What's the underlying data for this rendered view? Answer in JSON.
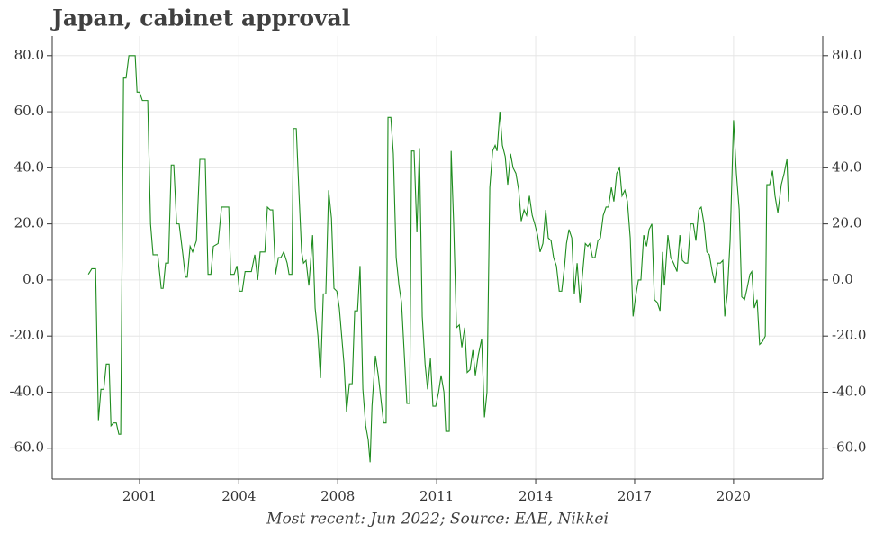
{
  "chart_data": {
    "type": "line",
    "title": "Japan, cabinet approval",
    "caption": "Most recent: Jun 2022; Source: EAE, Nikkei",
    "grid": true,
    "xlim": [
      1999.0,
      2023.53
    ],
    "xticks": [
      {
        "value": 2001.78,
        "label": "2001"
      },
      {
        "value": 2004.94,
        "label": "2004"
      },
      {
        "value": 2008.09,
        "label": "2008"
      },
      {
        "value": 2011.24,
        "label": "2011"
      },
      {
        "value": 2014.39,
        "label": "2014"
      },
      {
        "value": 2017.54,
        "label": "2017"
      },
      {
        "value": 2020.69,
        "label": "2020"
      }
    ],
    "ylim": [
      -71,
      87
    ],
    "yticks": [
      {
        "value": -60,
        "label": "-60.0"
      },
      {
        "value": -40,
        "label": "-40.0"
      },
      {
        "value": -20,
        "label": "-20.0"
      },
      {
        "value": 0,
        "label": "0.0"
      },
      {
        "value": 20,
        "label": "20.0"
      },
      {
        "value": 40,
        "label": "40.0"
      },
      {
        "value": 60,
        "label": "60.0"
      },
      {
        "value": 80,
        "label": "80.0"
      }
    ],
    "y2lim": [
      -71,
      87
    ],
    "y2ticks": [
      {
        "value": -60,
        "label": "-60.0"
      },
      {
        "value": -40,
        "label": "-40.0"
      },
      {
        "value": -20,
        "label": "-20.0"
      },
      {
        "value": 0,
        "label": "0.0"
      },
      {
        "value": 20,
        "label": "20.0"
      },
      {
        "value": 40,
        "label": "40.0"
      },
      {
        "value": 60,
        "label": "60.0"
      },
      {
        "value": 80,
        "label": "80.0"
      }
    ],
    "x": [
      2000.15,
      2000.26,
      2000.38,
      2000.47,
      2000.55,
      2000.64,
      2000.72,
      2000.81,
      2000.87,
      2000.95,
      2001.04,
      2001.12,
      2001.18,
      2001.27,
      2001.35,
      2001.44,
      2001.64,
      2001.7,
      2001.78,
      2001.87,
      2002.04,
      2002.13,
      2002.21,
      2002.36,
      2002.47,
      2002.53,
      2002.61,
      2002.7,
      2002.79,
      2002.87,
      2002.96,
      2003.04,
      2003.16,
      2003.24,
      2003.3,
      2003.39,
      2003.47,
      2003.59,
      2003.7,
      2003.87,
      2003.96,
      2004.05,
      2004.13,
      2004.28,
      2004.39,
      2004.62,
      2004.68,
      2004.79,
      2004.88,
      2004.96,
      2005.05,
      2005.14,
      2005.34,
      2005.45,
      2005.54,
      2005.62,
      2005.77,
      2005.85,
      2005.94,
      2006.02,
      2006.11,
      2006.2,
      2006.28,
      2006.37,
      2006.48,
      2006.54,
      2006.63,
      2006.68,
      2006.77,
      2006.86,
      2006.94,
      2007.0,
      2007.08,
      2007.17,
      2007.29,
      2007.37,
      2007.46,
      2007.54,
      2007.63,
      2007.71,
      2007.8,
      2007.89,
      2007.97,
      2008.06,
      2008.14,
      2008.23,
      2008.29,
      2008.37,
      2008.46,
      2008.55,
      2008.63,
      2008.72,
      2008.8,
      2008.89,
      2008.98,
      2009.06,
      2009.12,
      2009.18,
      2009.29,
      2009.38,
      2009.46,
      2009.55,
      2009.63,
      2009.69,
      2009.78,
      2009.86,
      2009.95,
      2010.04,
      2010.12,
      2010.21,
      2010.29,
      2010.38,
      2010.44,
      2010.52,
      2010.61,
      2010.69,
      2010.78,
      2010.87,
      2010.95,
      2011.04,
      2011.12,
      2011.21,
      2011.3,
      2011.38,
      2011.47,
      2011.53,
      2011.64,
      2011.7,
      2011.78,
      2011.87,
      2011.96,
      2012.04,
      2012.13,
      2012.21,
      2012.3,
      2012.39,
      2012.47,
      2012.56,
      2012.67,
      2012.76,
      2012.84,
      2012.93,
      2013.02,
      2013.1,
      2013.16,
      2013.25,
      2013.33,
      2013.42,
      2013.5,
      2013.59,
      2013.67,
      2013.76,
      2013.85,
      2013.93,
      2014.02,
      2014.1,
      2014.19,
      2014.28,
      2014.36,
      2014.45,
      2014.53,
      2014.62,
      2014.71,
      2014.79,
      2014.88,
      2014.96,
      2015.05,
      2015.14,
      2015.22,
      2015.31,
      2015.37,
      2015.45,
      2015.54,
      2015.62,
      2015.71,
      2015.8,
      2015.88,
      2015.97,
      2016.05,
      2016.11,
      2016.2,
      2016.28,
      2016.37,
      2016.45,
      2016.54,
      2016.63,
      2016.71,
      2016.8,
      2016.88,
      2016.97,
      2017.06,
      2017.14,
      2017.23,
      2017.31,
      2017.4,
      2017.49,
      2017.57,
      2017.66,
      2017.74,
      2017.83,
      2017.92,
      2018.0,
      2018.09,
      2018.17,
      2018.26,
      2018.35,
      2018.43,
      2018.49,
      2018.6,
      2018.69,
      2018.78,
      2018.89,
      2018.98,
      2019.06,
      2019.15,
      2019.23,
      2019.32,
      2019.41,
      2019.49,
      2019.58,
      2019.66,
      2019.75,
      2019.84,
      2019.92,
      2020.01,
      2020.09,
      2020.18,
      2020.27,
      2020.35,
      2020.41,
      2020.49,
      2020.58,
      2020.69,
      2020.78,
      2020.87,
      2020.95,
      2021.04,
      2021.12,
      2021.21,
      2021.27,
      2021.35,
      2021.44,
      2021.52,
      2021.61,
      2021.7,
      2021.75,
      2021.84,
      2021.93,
      2022.01,
      2022.1,
      2022.21,
      2022.3,
      2022.39,
      2022.44
    ],
    "series": [
      {
        "color": "#1e8c1e",
        "values": [
          2,
          4,
          4,
          -50,
          -39,
          -39,
          -30,
          -30,
          -52,
          -51,
          -51,
          -55,
          -55,
          72,
          72,
          80,
          80,
          67,
          67,
          64,
          64,
          20,
          9,
          9,
          -3,
          -3,
          6,
          6,
          41,
          41,
          20,
          20,
          9,
          1,
          1,
          12,
          10,
          14,
          43,
          43,
          2,
          2,
          12,
          13,
          26,
          26,
          2,
          2,
          5,
          -4,
          -4,
          3,
          3,
          9,
          0,
          10,
          10,
          26,
          25,
          25,
          2,
          8,
          8,
          10,
          6,
          2,
          2,
          54,
          54,
          30,
          10,
          6,
          7,
          -2,
          16,
          -10,
          -20,
          -35,
          -5,
          -5,
          32,
          22,
          -3,
          -4,
          -10,
          -22,
          -30,
          -47,
          -37,
          -37,
          -11,
          -11,
          5,
          -39,
          -52,
          -57,
          -65,
          -45,
          -27,
          -34,
          -42,
          -51,
          -51,
          58,
          58,
          45,
          8,
          -2,
          -8,
          -27,
          -44,
          -44,
          46,
          46,
          17,
          47,
          -13,
          -30,
          -39,
          -28,
          -45,
          -45,
          -40,
          -34,
          -40,
          -54,
          -54,
          46,
          20,
          -17,
          -16,
          -24,
          -17,
          -33,
          -32,
          -25,
          -34,
          -27,
          -21,
          -49,
          -40,
          33,
          46,
          48,
          46,
          60,
          48,
          44,
          34,
          45,
          40,
          38,
          32,
          21,
          25,
          23,
          30,
          23,
          20,
          16,
          10,
          13,
          25,
          15,
          14,
          8,
          5,
          -4,
          -4,
          5,
          13,
          18,
          15,
          -5,
          6,
          -8,
          2,
          13,
          12,
          13,
          8,
          8,
          14,
          15,
          23,
          26,
          26,
          33,
          28,
          38,
          40,
          30,
          32,
          28,
          15,
          -13,
          -6,
          0,
          0,
          16,
          12,
          18,
          20,
          -7,
          -8,
          -11,
          10,
          -2,
          16,
          8,
          6,
          3,
          16,
          7,
          6,
          6,
          20,
          20,
          14,
          25,
          26,
          20,
          10,
          9,
          3,
          -1,
          6,
          6,
          7,
          -13,
          -5,
          14,
          57,
          38,
          25,
          -6,
          -7,
          -3,
          2,
          3,
          -10,
          -7,
          -23,
          -22,
          -20,
          34,
          34,
          39,
          30,
          24,
          34,
          38,
          43,
          28
        ]
      }
    ]
  }
}
